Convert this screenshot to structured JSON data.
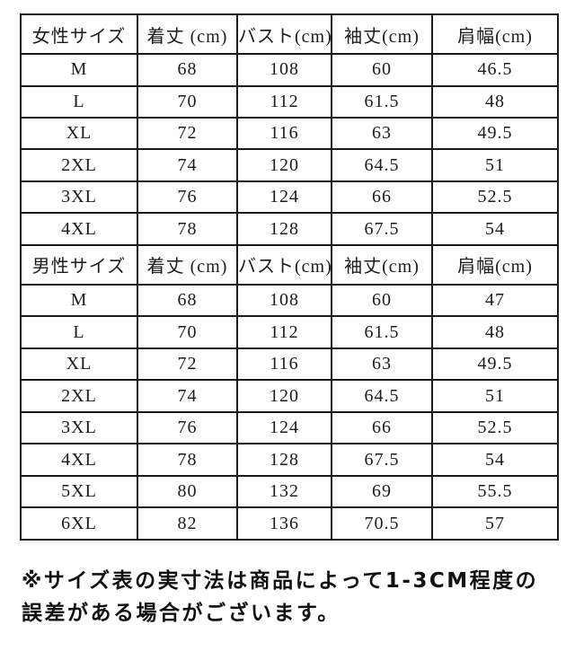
{
  "page": {
    "background_color": "#ffffff",
    "text_color": "#1b1b1b",
    "table_border_color": "#1a1a1a"
  },
  "size_chart": {
    "sections": [
      {
        "id": "women",
        "headers": [
          "女性サイズ",
          "着丈 (cm)",
          "バスト(cm)",
          "袖丈(cm)",
          "肩幅(cm)"
        ],
        "rows": [
          [
            "M",
            "68",
            "108",
            "60",
            "46.5"
          ],
          [
            "L",
            "70",
            "112",
            "61.5",
            "48"
          ],
          [
            "XL",
            "72",
            "116",
            "63",
            "49.5"
          ],
          [
            "2XL",
            "74",
            "120",
            "64.5",
            "51"
          ],
          [
            "3XL",
            "76",
            "124",
            "66",
            "52.5"
          ],
          [
            "4XL",
            "78",
            "128",
            "67.5",
            "54"
          ]
        ]
      },
      {
        "id": "men",
        "headers": [
          "男性サイズ",
          "着丈 (cm)",
          "バスト(cm)",
          "袖丈(cm)",
          "肩幅(cm)"
        ],
        "rows": [
          [
            "M",
            "68",
            "108",
            "60",
            "47"
          ],
          [
            "L",
            "70",
            "112",
            "61.5",
            "48"
          ],
          [
            "XL",
            "72",
            "116",
            "63",
            "49.5"
          ],
          [
            "2XL",
            "74",
            "120",
            "64.5",
            "51"
          ],
          [
            "3XL",
            "76",
            "124",
            "66",
            "52.5"
          ],
          [
            "4XL",
            "78",
            "128",
            "67.5",
            "54"
          ],
          [
            "5XL",
            "80",
            "132",
            "69",
            "55.5"
          ],
          [
            "6XL",
            "82",
            "136",
            "70.5",
            "57"
          ]
        ]
      }
    ]
  },
  "footer_note": {
    "line1": "※サイズ表の実寸法は商品によって1-3CM程度の",
    "line2": "誤差がある場合がございます。"
  }
}
